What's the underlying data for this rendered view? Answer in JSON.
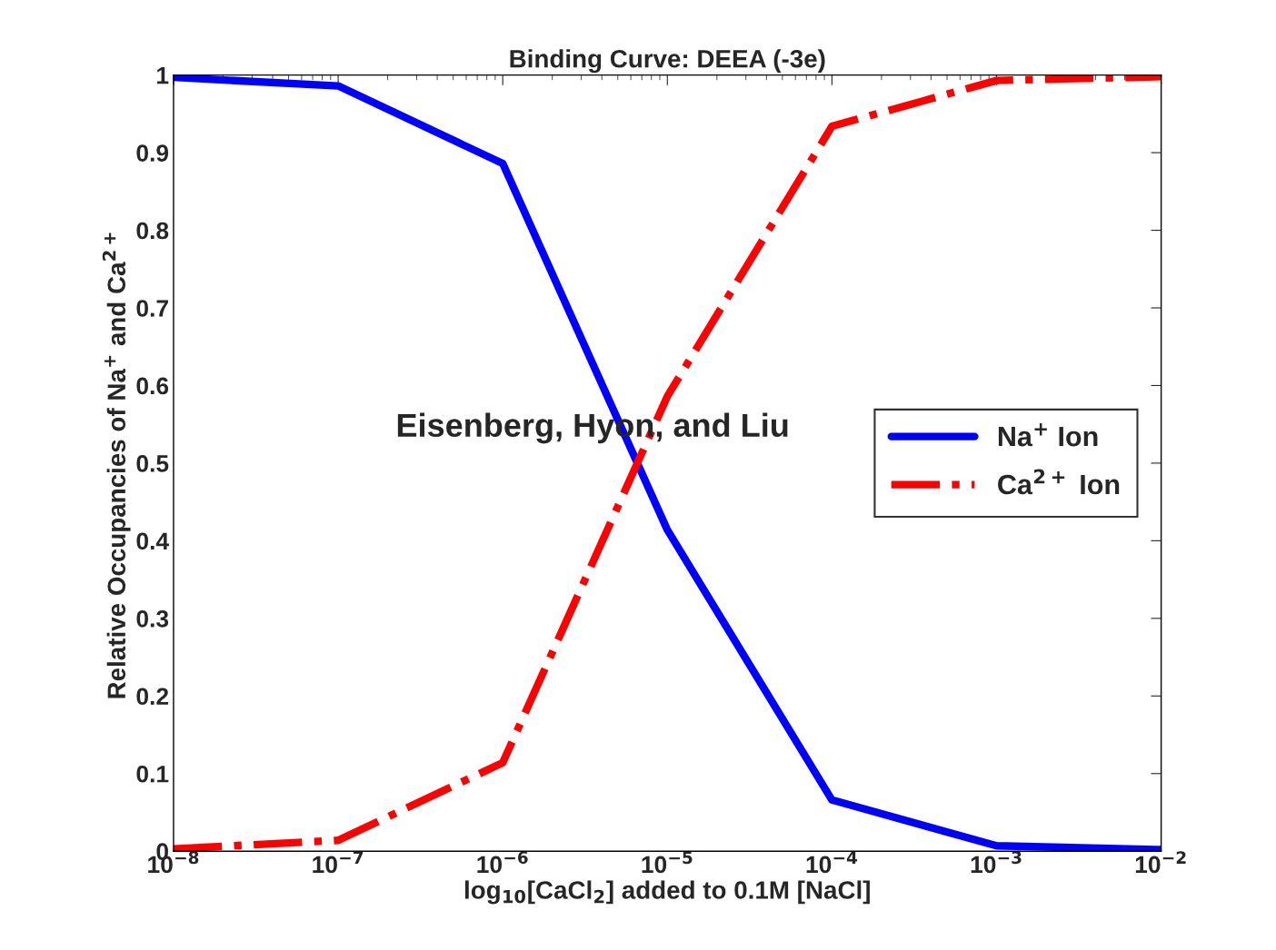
{
  "chart_data": {
    "type": "line",
    "title": "Binding Curve: DEEA (-3e)",
    "xlabel": "log$_{10}$[CaCl$_{2}$] added to 0.1M [NaCl]",
    "ylabel": "Relative Occupancies of Na$^{+}$ and Ca$^{2+}$",
    "x": [
      1e-08,
      1e-07,
      1e-06,
      1e-05,
      0.0001,
      0.001,
      0.01
    ],
    "series": [
      {
        "name": "Na$^{+}$ Ion",
        "color": "#0000ff",
        "line_style": "solid",
        "values": [
          0.997,
          0.986,
          0.886,
          0.414,
          0.066,
          0.007,
          0.002
        ]
      },
      {
        "name": "Ca$^{2+}$ Ion",
        "color": "#ff0000",
        "line_style": "dashdot",
        "values": [
          0.003,
          0.014,
          0.114,
          0.586,
          0.934,
          0.993,
          0.998
        ]
      }
    ],
    "log": "x",
    "xlim": [
      1e-08,
      0.01
    ],
    "xticks": [
      {
        "value": 1e-08,
        "label": "10$^{−8}$"
      },
      {
        "value": 1e-07,
        "label": "10$^{−7}$"
      },
      {
        "value": 1e-06,
        "label": "10$^{−6}$"
      },
      {
        "value": 1e-05,
        "label": "10$^{−5}$"
      },
      {
        "value": 0.0001,
        "label": "10$^{−4}$"
      },
      {
        "value": 0.001,
        "label": "10$^{−3}$"
      },
      {
        "value": 0.01,
        "label": "10$^{−2}$"
      }
    ],
    "ylim": [
      0,
      1
    ],
    "yticks": [
      0,
      0.1,
      0.2,
      0.3,
      0.4,
      0.5,
      0.6,
      0.7,
      0.8,
      0.9,
      1
    ],
    "grid": false,
    "legend": "center right",
    "annotations": [
      "Eisenberg, Hyon, and Liu"
    ]
  }
}
